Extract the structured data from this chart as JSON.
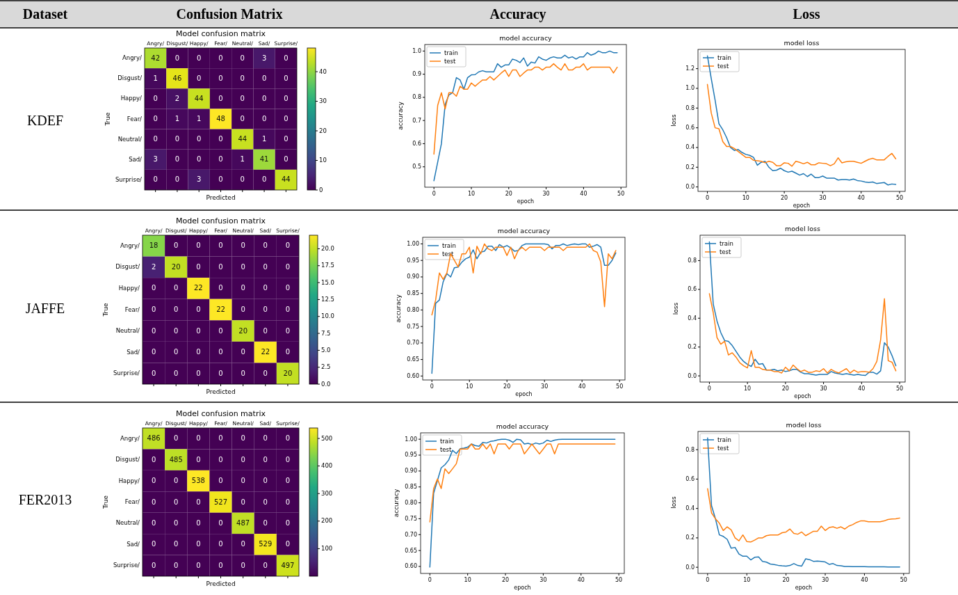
{
  "chart_data": [
    {
      "type": "other",
      "annotations": [
        "Dataset",
        "Confusion Matrix",
        "Accuracy",
        "Loss",
        "KDEF",
        "JAFFE",
        "FER2013"
      ]
    },
    {
      "type": "heatmap",
      "title": "Model confusion matrix",
      "xlabel": "Predicted",
      "ylabel": "True",
      "categories": [
        "Angry/",
        "Disgust/",
        "Happy/",
        "Fear/",
        "Neutral/",
        "Sad/",
        "Surprise/"
      ],
      "y_categories": [
        "Angry/",
        "Disgust/",
        "Happy/",
        "Fear/",
        "Neutral/",
        "Sad/",
        "Surprise/"
      ],
      "cells": [
        [
          42,
          0,
          0,
          0,
          0,
          3,
          0
        ],
        [
          1,
          46,
          0,
          0,
          0,
          0,
          0
        ],
        [
          0,
          2,
          44,
          0,
          0,
          0,
          0
        ],
        [
          0,
          1,
          1,
          48,
          0,
          0,
          0
        ],
        [
          0,
          0,
          0,
          0,
          44,
          1,
          0
        ],
        [
          3,
          0,
          0,
          0,
          1,
          41,
          0
        ],
        [
          0,
          0,
          3,
          0,
          0,
          0,
          44
        ]
      ],
      "clim": [
        0,
        48
      ],
      "cticks": [
        0,
        10,
        20,
        30,
        40
      ],
      "data_labels": true
    },
    {
      "type": "line",
      "title": "model accuracy",
      "xlabel": "epoch",
      "ylabel": "accuracy",
      "x": [
        0,
        1,
        2,
        3,
        4,
        5,
        6,
        7,
        8,
        9,
        10,
        11,
        12,
        13,
        14,
        15,
        16,
        17,
        18,
        19,
        20,
        21,
        22,
        23,
        24,
        25,
        26,
        27,
        28,
        29,
        30,
        31,
        32,
        33,
        34,
        35,
        36,
        37,
        38,
        39,
        40,
        41,
        42,
        43,
        44,
        45,
        46,
        47,
        48,
        49
      ],
      "xlim": [
        -2.45,
        51.45
      ],
      "xticks": [
        0,
        10,
        20,
        30,
        40,
        50
      ],
      "ylim": [
        0.412,
        1.028
      ],
      "yticks": [
        0.5,
        0.6,
        0.7,
        0.8,
        0.9,
        {
          "value": 1,
          "label": "1.0"
        }
      ],
      "legend": "top left",
      "series": [
        {
          "name": "train",
          "color": "#1f77b4",
          "values": [
            0.44,
            0.52,
            0.6,
            0.77,
            0.81,
            0.82,
            0.885,
            0.875,
            0.835,
            0.885,
            0.897,
            0.898,
            0.91,
            0.915,
            0.91,
            0.91,
            0.91,
            0.945,
            0.93,
            0.94,
            0.94,
            0.965,
            0.96,
            0.95,
            0.97,
            0.935,
            0.952,
            0.948,
            0.975,
            0.965,
            0.96,
            0.97,
            0.975,
            0.97,
            0.97,
            0.982,
            0.97,
            0.975,
            0.965,
            0.975,
            0.975,
            0.993,
            0.982,
            0.988,
            1.0,
            0.993,
            0.993,
            1.0,
            0.993,
            0.993
          ]
        },
        {
          "name": "test",
          "color": "#ff7f0e",
          "values": [
            0.555,
            0.765,
            0.82,
            0.75,
            0.82,
            0.82,
            0.805,
            0.848,
            0.835,
            0.835,
            0.862,
            0.848,
            0.862,
            0.875,
            0.875,
            0.89,
            0.875,
            0.89,
            0.905,
            0.918,
            0.89,
            0.918,
            0.918,
            0.89,
            0.905,
            0.918,
            0.918,
            0.93,
            0.93,
            0.918,
            0.93,
            0.93,
            0.945,
            0.93,
            0.918,
            0.945,
            0.918,
            0.918,
            0.93,
            0.93,
            0.945,
            0.918,
            0.93,
            0.93,
            0.93,
            0.93,
            0.93,
            0.93,
            0.905,
            0.93
          ]
        }
      ]
    },
    {
      "type": "line",
      "title": "model loss",
      "xlabel": "epoch",
      "ylabel": "loss",
      "x": [
        0,
        1,
        2,
        3,
        4,
        5,
        6,
        7,
        8,
        9,
        10,
        11,
        12,
        13,
        14,
        15,
        16,
        17,
        18,
        19,
        20,
        21,
        22,
        23,
        24,
        25,
        26,
        27,
        28,
        29,
        30,
        31,
        32,
        33,
        34,
        35,
        36,
        37,
        38,
        39,
        40,
        41,
        42,
        43,
        44,
        45,
        46,
        47,
        48,
        49
      ],
      "xlim": [
        -2.45,
        51.45
      ],
      "xticks": [
        0,
        10,
        20,
        30,
        40,
        50
      ],
      "ylim": [
        -0.045,
        1.395
      ],
      "yticks": [
        {
          "value": 0,
          "label": "0.0"
        },
        0.2,
        0.4,
        0.6,
        0.8,
        {
          "value": 1,
          "label": "1.0"
        },
        1.2
      ],
      "legend": "top left",
      "series": [
        {
          "name": "train",
          "color": "#1f77b4",
          "values": [
            1.33,
            1.1,
            0.88,
            0.64,
            0.58,
            0.5,
            0.4,
            0.37,
            0.38,
            0.35,
            0.33,
            0.32,
            0.3,
            0.22,
            0.25,
            0.26,
            0.2,
            0.165,
            0.17,
            0.19,
            0.165,
            0.15,
            0.16,
            0.14,
            0.12,
            0.135,
            0.105,
            0.13,
            0.095,
            0.095,
            0.11,
            0.09,
            0.09,
            0.09,
            0.07,
            0.075,
            0.075,
            0.07,
            0.08,
            0.065,
            0.06,
            0.05,
            0.045,
            0.05,
            0.035,
            0.04,
            0.045,
            0.02,
            0.03,
            0.025
          ]
        },
        {
          "name": "test",
          "color": "#ff7f0e",
          "values": [
            1.04,
            0.75,
            0.6,
            0.59,
            0.46,
            0.41,
            0.41,
            0.39,
            0.36,
            0.33,
            0.3,
            0.3,
            0.27,
            0.265,
            0.26,
            0.245,
            0.26,
            0.25,
            0.215,
            0.215,
            0.245,
            0.24,
            0.21,
            0.26,
            0.25,
            0.235,
            0.25,
            0.225,
            0.225,
            0.245,
            0.24,
            0.235,
            0.215,
            0.235,
            0.295,
            0.245,
            0.255,
            0.26,
            0.26,
            0.25,
            0.24,
            0.26,
            0.28,
            0.29,
            0.275,
            0.275,
            0.275,
            0.31,
            0.34,
            0.285
          ]
        }
      ]
    },
    {
      "type": "heatmap",
      "title": "Model confusion matrix",
      "xlabel": "Predicted",
      "ylabel": "True",
      "categories": [
        "Angry/",
        "Disgust/",
        "Happy/",
        "Fear/",
        "Neutral/",
        "Sad/",
        "Surprise/"
      ],
      "y_categories": [
        "Angry/",
        "Disgust/",
        "Happy/",
        "Fear/",
        "Neutral/",
        "Sad/",
        "Surprise/"
      ],
      "cells": [
        [
          18,
          0,
          0,
          0,
          0,
          0,
          0
        ],
        [
          2,
          20,
          0,
          0,
          0,
          0,
          0
        ],
        [
          0,
          0,
          22,
          0,
          0,
          0,
          0
        ],
        [
          0,
          0,
          0,
          22,
          0,
          0,
          0
        ],
        [
          0,
          0,
          0,
          0,
          20,
          0,
          0
        ],
        [
          0,
          0,
          0,
          0,
          0,
          22,
          0
        ],
        [
          0,
          0,
          0,
          0,
          0,
          0,
          20
        ]
      ],
      "clim": [
        0,
        22
      ],
      "cticks": [
        {
          "value": 0,
          "label": "0.0"
        },
        2.5,
        {
          "value": 5,
          "label": "5.0"
        },
        7.5,
        {
          "value": 10,
          "label": "10.0"
        },
        12.5,
        {
          "value": 15,
          "label": "15.0"
        },
        17.5,
        {
          "value": 20,
          "label": "20.0"
        }
      ],
      "data_labels": true
    },
    {
      "type": "line",
      "title": "model accuracy",
      "xlabel": "epoch",
      "ylabel": "accuracy",
      "x": [
        0,
        1,
        2,
        3,
        4,
        5,
        6,
        7,
        8,
        9,
        10,
        11,
        12,
        13,
        14,
        15,
        16,
        17,
        18,
        19,
        20,
        21,
        22,
        23,
        24,
        25,
        26,
        27,
        28,
        29,
        30,
        31,
        32,
        33,
        34,
        35,
        36,
        37,
        38,
        39,
        40,
        41,
        42,
        43,
        44,
        45,
        46,
        47,
        48,
        49
      ],
      "xlim": [
        -2.45,
        51.45
      ],
      "xticks": [
        0,
        10,
        20,
        30,
        40,
        50
      ],
      "ylim": [
        0.588,
        1.02
      ],
      "yticks": [
        {
          "value": 0.6,
          "label": "0.60"
        },
        0.65,
        {
          "value": 0.7,
          "label": "0.70"
        },
        0.75,
        {
          "value": 0.8,
          "label": "0.80"
        },
        0.85,
        {
          "value": 0.9,
          "label": "0.90"
        },
        0.95,
        {
          "value": 1,
          "label": "1.00"
        }
      ],
      "legend": "top left",
      "series": [
        {
          "name": "train",
          "color": "#1f77b4",
          "values": [
            0.608,
            0.82,
            0.83,
            0.885,
            0.91,
            0.9,
            0.928,
            0.93,
            0.945,
            0.955,
            0.96,
            0.982,
            0.955,
            0.975,
            0.978,
            0.993,
            0.993,
            0.98,
            0.998,
            0.99,
            0.995,
            0.988,
            0.978,
            0.98,
            0.995,
            1.0,
            1.0,
            1.0,
            1.0,
            1.0,
            1.0,
            0.998,
            0.985,
            0.995,
            0.995,
            1.0,
            0.995,
            0.998,
            1.0,
            0.998,
            1.0,
            1.0,
            0.99,
            0.993,
            0.998,
            0.99,
            0.935,
            0.935,
            0.95,
            0.973
          ]
        },
        {
          "name": "test",
          "color": "#ff7f0e",
          "values": [
            0.785,
            0.83,
            0.912,
            0.893,
            0.912,
            0.97,
            0.95,
            0.93,
            0.97,
            0.97,
            0.99,
            0.912,
            0.993,
            0.97,
            1.0,
            0.985,
            0.98,
            0.99,
            0.99,
            0.99,
            0.965,
            0.99,
            0.955,
            0.98,
            0.99,
            0.98,
            0.99,
            0.99,
            0.99,
            0.99,
            0.98,
            0.99,
            0.99,
            0.99,
            0.99,
            0.98,
            0.99,
            0.99,
            0.99,
            0.99,
            0.99,
            0.99,
            1.0,
            0.98,
            0.975,
            0.945,
            0.81,
            0.97,
            0.955,
            0.98
          ]
        }
      ]
    },
    {
      "type": "line",
      "title": "model loss",
      "xlabel": "epoch",
      "ylabel": "loss",
      "x": [
        0,
        1,
        2,
        3,
        4,
        5,
        6,
        7,
        8,
        9,
        10,
        11,
        12,
        13,
        14,
        15,
        16,
        17,
        18,
        19,
        20,
        21,
        22,
        23,
        24,
        25,
        26,
        27,
        28,
        29,
        30,
        31,
        32,
        33,
        34,
        35,
        36,
        37,
        38,
        39,
        40,
        41,
        42,
        43,
        44,
        45,
        46,
        47,
        48,
        49
      ],
      "xlim": [
        -2.45,
        51.45
      ],
      "xticks": [
        0,
        10,
        20,
        30,
        40,
        50
      ],
      "ylim": [
        -0.043,
        0.976
      ],
      "yticks": [
        {
          "value": 0,
          "label": "0.0"
        },
        0.2,
        0.4,
        0.6,
        0.8
      ],
      "legend": "top left",
      "series": [
        {
          "name": "train",
          "color": "#1f77b4",
          "values": [
            0.93,
            0.5,
            0.38,
            0.3,
            0.245,
            0.24,
            0.21,
            0.17,
            0.13,
            0.1,
            0.08,
            0.065,
            0.115,
            0.08,
            0.085,
            0.04,
            0.04,
            0.045,
            0.035,
            0.04,
            0.03,
            0.035,
            0.045,
            0.045,
            0.025,
            0.015,
            0.015,
            0.01,
            0.005,
            0.01,
            0.01,
            0.01,
            0.03,
            0.02,
            0.015,
            0.01,
            0.015,
            0.01,
            0.005,
            0.01,
            0.005,
            0.003,
            0.025,
            0.025,
            0.012,
            0.035,
            0.23,
            0.2,
            0.14,
            0.07
          ]
        },
        {
          "name": "test",
          "color": "#ff7f0e",
          "values": [
            0.57,
            0.44,
            0.265,
            0.22,
            0.24,
            0.145,
            0.16,
            0.13,
            0.09,
            0.07,
            0.055,
            0.175,
            0.06,
            0.06,
            0.045,
            0.04,
            0.04,
            0.03,
            0.03,
            0.02,
            0.06,
            0.035,
            0.075,
            0.05,
            0.03,
            0.04,
            0.025,
            0.025,
            0.035,
            0.03,
            0.05,
            0.02,
            0.045,
            0.03,
            0.02,
            0.035,
            0.05,
            0.02,
            0.04,
            0.025,
            0.03,
            0.03,
            0.025,
            0.05,
            0.1,
            0.25,
            0.535,
            0.105,
            0.095,
            0.035
          ]
        }
      ]
    },
    {
      "type": "heatmap",
      "title": "Model confusion matrix",
      "xlabel": "Predicted",
      "ylabel": "True",
      "categories": [
        "Angry/",
        "Disgust/",
        "Happy/",
        "Fear/",
        "Neutral/",
        "Sad/",
        "Surprise/"
      ],
      "y_categories": [
        "Angry/",
        "Disgust/",
        "Happy/",
        "Fear/",
        "Neutral/",
        "Sad/",
        "Surprise/"
      ],
      "cells": [
        [
          486,
          0,
          0,
          0,
          0,
          0,
          0
        ],
        [
          0,
          485,
          0,
          0,
          0,
          0,
          0
        ],
        [
          0,
          0,
          538,
          0,
          0,
          0,
          0
        ],
        [
          0,
          0,
          0,
          527,
          0,
          0,
          0
        ],
        [
          0,
          0,
          0,
          0,
          487,
          0,
          0
        ],
        [
          0,
          0,
          0,
          0,
          0,
          529,
          0
        ],
        [
          0,
          0,
          0,
          0,
          0,
          0,
          497
        ]
      ],
      "clim": [
        0,
        538
      ],
      "cticks": [
        100,
        200,
        300,
        400,
        500
      ],
      "data_labels": true
    },
    {
      "type": "line",
      "title": "model accuracy",
      "xlabel": "epoch",
      "ylabel": "accuracy",
      "x": [
        0,
        1,
        2,
        3,
        4,
        5,
        6,
        7,
        8,
        9,
        10,
        11,
        12,
        13,
        14,
        15,
        16,
        17,
        18,
        19,
        20,
        21,
        22,
        23,
        24,
        25,
        26,
        27,
        28,
        29,
        30,
        31,
        32,
        33,
        34,
        35,
        36,
        37,
        38,
        39,
        40,
        41,
        42,
        43,
        44,
        45,
        46,
        47,
        48,
        49
      ],
      "xlim": [
        -2.45,
        51.45
      ],
      "xticks": [
        0,
        10,
        20,
        30,
        40,
        50
      ],
      "ylim": [
        0.578,
        1.02
      ],
      "yticks": [
        {
          "value": 0.6,
          "label": "0.60"
        },
        0.65,
        {
          "value": 0.7,
          "label": "0.70"
        },
        0.75,
        {
          "value": 0.8,
          "label": "0.80"
        },
        0.85,
        {
          "value": 0.9,
          "label": "0.90"
        },
        0.95,
        {
          "value": 1,
          "label": "1.00"
        }
      ],
      "legend": "top left",
      "series": [
        {
          "name": "train",
          "color": "#1f77b4",
          "values": [
            0.598,
            0.83,
            0.87,
            0.91,
            0.92,
            0.935,
            0.965,
            0.955,
            0.97,
            0.972,
            0.975,
            0.985,
            0.98,
            0.978,
            0.99,
            0.988,
            0.993,
            0.995,
            0.998,
            1.0,
            1.0,
            0.997,
            0.99,
            1.0,
            0.998,
            0.985,
            0.987,
            0.983,
            0.988,
            0.985,
            0.988,
            0.997,
            0.993,
            0.997,
            0.999,
            1.0,
            1.0,
            1.0,
            1.0,
            1.0,
            1.0,
            1.0,
            1.0,
            1.0,
            1.0,
            1.0,
            1.0,
            1.0,
            1.0,
            1.0
          ]
        },
        {
          "name": "test",
          "color": "#ff7f0e",
          "values": [
            0.74,
            0.845,
            0.875,
            0.845,
            0.907,
            0.892,
            0.907,
            0.923,
            0.969,
            0.969,
            0.969,
            0.985,
            0.969,
            0.969,
            0.985,
            0.969,
            0.985,
            0.954,
            0.985,
            0.985,
            0.985,
            0.969,
            0.985,
            0.985,
            0.985,
            0.954,
            0.969,
            0.985,
            0.969,
            0.954,
            0.969,
            0.985,
            0.985,
            0.954,
            0.985,
            0.985,
            0.985,
            0.985,
            0.985,
            0.985,
            0.985,
            0.985,
            0.985,
            0.985,
            0.985,
            0.985,
            0.985,
            0.985,
            0.985,
            0.985
          ]
        }
      ]
    },
    {
      "type": "line",
      "title": "model loss",
      "xlabel": "epoch",
      "ylabel": "loss",
      "x": [
        0,
        1,
        2,
        3,
        4,
        5,
        6,
        7,
        8,
        9,
        10,
        11,
        12,
        13,
        14,
        15,
        16,
        17,
        18,
        19,
        20,
        21,
        22,
        23,
        24,
        25,
        26,
        27,
        28,
        29,
        30,
        31,
        32,
        33,
        34,
        35,
        36,
        37,
        38,
        39,
        40,
        41,
        42,
        43,
        44,
        45,
        46,
        47,
        48,
        49
      ],
      "xlim": [
        -2.45,
        51.45
      ],
      "xticks": [
        0,
        10,
        20,
        30,
        40,
        50
      ],
      "ylim": [
        -0.042,
        0.924
      ],
      "yticks": [
        {
          "value": 0,
          "label": "0.0"
        },
        0.2,
        0.4,
        0.6,
        0.8
      ],
      "legend": "top left",
      "series": [
        {
          "name": "train",
          "color": "#1f77b4",
          "values": [
            0.88,
            0.42,
            0.33,
            0.22,
            0.21,
            0.19,
            0.13,
            0.135,
            0.09,
            0.075,
            0.075,
            0.05,
            0.068,
            0.07,
            0.04,
            0.035,
            0.022,
            0.018,
            0.013,
            0.01,
            0.008,
            0.012,
            0.025,
            0.012,
            0.008,
            0.057,
            0.052,
            0.04,
            0.042,
            0.04,
            0.036,
            0.02,
            0.025,
            0.012,
            0.01,
            0.005,
            0.005,
            0.004,
            0.004,
            0.004,
            0.004,
            0.003,
            0.003,
            0.003,
            0.003,
            0.003,
            0.002,
            0.002,
            0.002,
            0.002
          ]
        },
        {
          "name": "test",
          "color": "#ff7f0e",
          "values": [
            0.535,
            0.37,
            0.33,
            0.3,
            0.25,
            0.275,
            0.255,
            0.2,
            0.18,
            0.22,
            0.175,
            0.172,
            0.185,
            0.2,
            0.2,
            0.215,
            0.22,
            0.22,
            0.22,
            0.235,
            0.24,
            0.26,
            0.23,
            0.225,
            0.24,
            0.215,
            0.23,
            0.245,
            0.245,
            0.28,
            0.25,
            0.27,
            0.275,
            0.265,
            0.275,
            0.26,
            0.28,
            0.29,
            0.305,
            0.315,
            0.315,
            0.31,
            0.31,
            0.31,
            0.31,
            0.315,
            0.325,
            0.328,
            0.33,
            0.335
          ]
        }
      ]
    }
  ]
}
